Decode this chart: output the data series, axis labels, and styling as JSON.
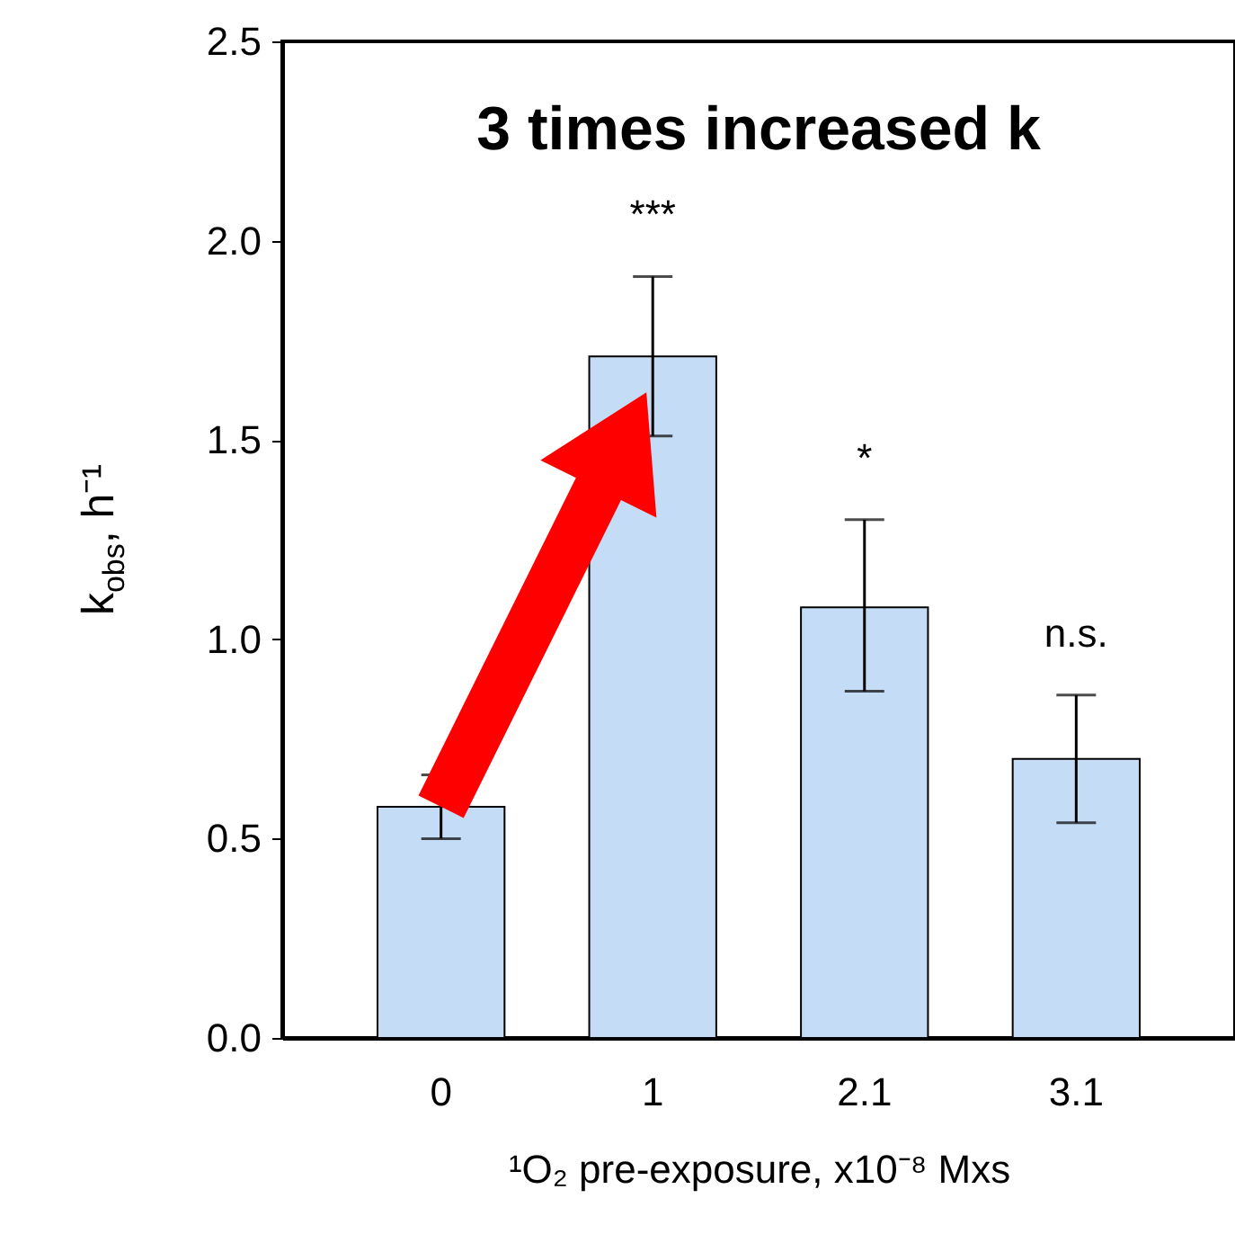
{
  "chart_data": {
    "type": "bar",
    "title": "3 times increased k",
    "xlabel": "¹O₂ pre-exposure, x10⁻⁸ Mxs",
    "ylabel": "k$_{obs}$, h⁻¹",
    "categories": [
      "0",
      "1",
      "2.1",
      "3.1"
    ],
    "values": [
      0.58,
      1.71,
      1.08,
      0.7
    ],
    "errors": [
      0.08,
      0.2,
      [
        0.87,
        1.3
      ],
      [
        0.54,
        0.86
      ]
    ],
    "color": "#c5dcf6",
    "ylim": [
      0,
      2.5
    ],
    "yticks": [
      {
        "value": 0,
        "label": "0.0"
      },
      {
        "value": 0.5,
        "label": "0.5"
      },
      {
        "value": 1,
        "label": "1.0"
      },
      {
        "value": 1.5,
        "label": "1.5"
      },
      {
        "value": 2,
        "label": "2.0"
      },
      {
        "value": 2.5,
        "label": "2.5"
      }
    ],
    "annotations": [
      "***",
      "*",
      "n.s."
    ],
    "grid": false
  }
}
